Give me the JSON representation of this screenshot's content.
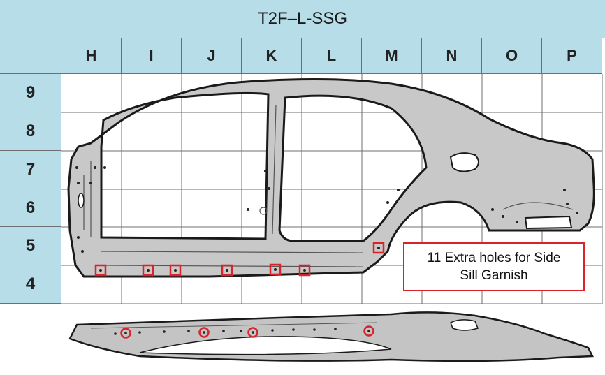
{
  "title": "T2F–L-SSG",
  "columns": [
    "H",
    "I",
    "J",
    "K",
    "L",
    "M",
    "N",
    "O",
    "P"
  ],
  "rows": [
    "9",
    "8",
    "7",
    "6",
    "5",
    "4"
  ],
  "callout": {
    "line1": "11 Extra holes for Side",
    "line2": "Sill Garnish"
  },
  "colors": {
    "header_fill": "#b7dde8",
    "grid_line": "#6f6f6f",
    "marker": "#d9232a",
    "panel_fill": "#c8c8c8",
    "panel_edge": "#1a1a1a"
  }
}
